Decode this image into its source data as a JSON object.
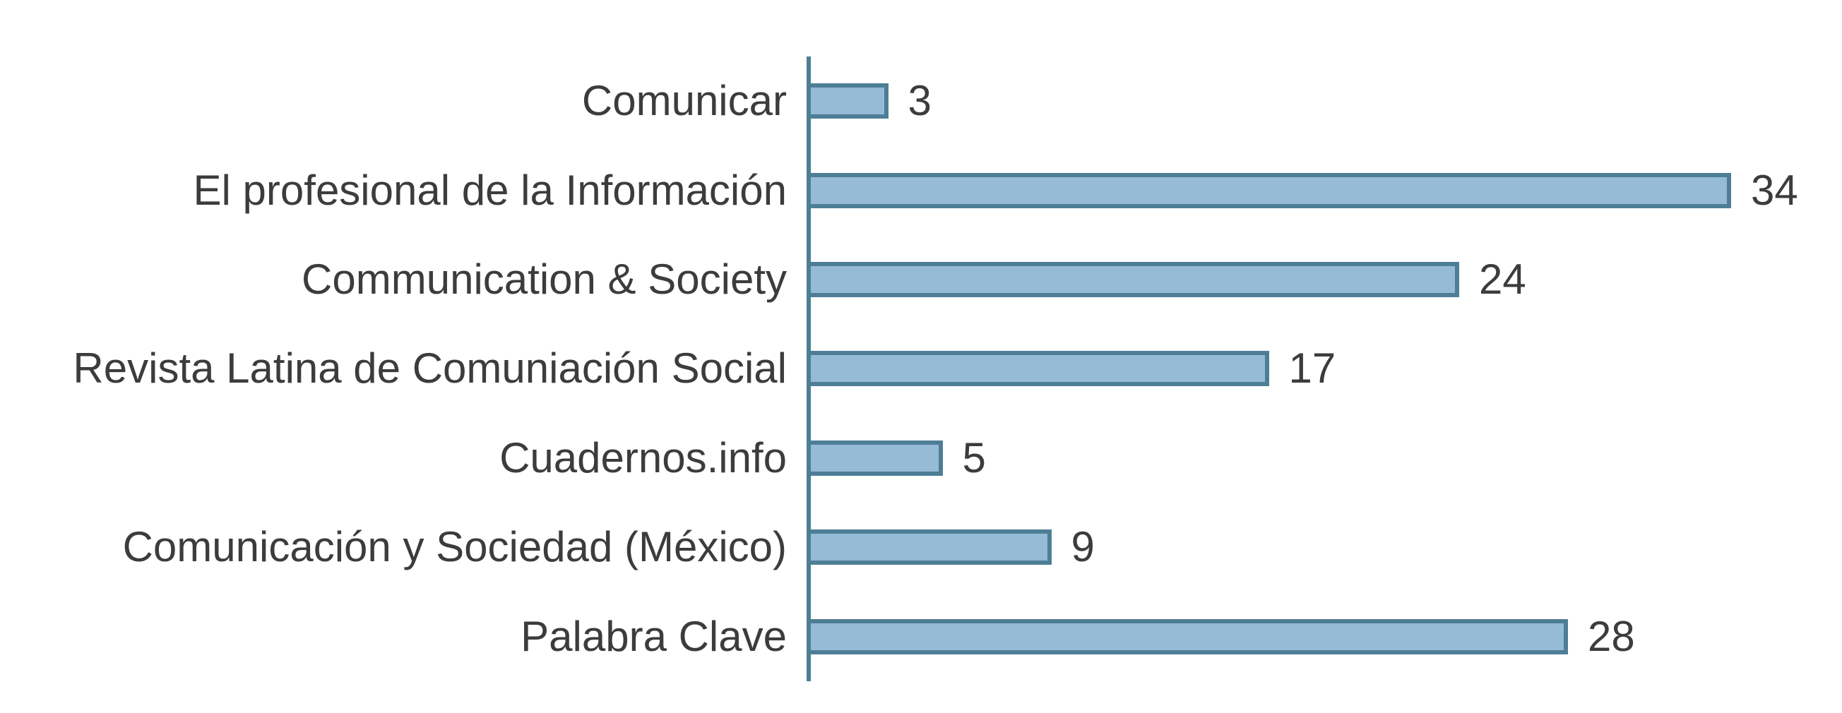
{
  "chart_data": {
    "type": "bar",
    "orientation": "horizontal",
    "title": "",
    "xlabel": "",
    "ylabel": "",
    "categories": [
      "Comunicar",
      "El profesional de la Información",
      "Communication & Society",
      "Revista Latina de Comuniación Social",
      "Cuadernos.info",
      "Comunicación y Sociedad (México)",
      "Palabra Clave"
    ],
    "values": [
      3,
      34,
      24,
      17,
      5,
      9,
      28
    ],
    "value_labels_shown": true,
    "xlim": [
      0,
      38
    ],
    "grid": false,
    "legend": "none",
    "colors": {
      "bar_fill": "#96bbd6",
      "bar_border": "#4d7e96",
      "axis_line": "#4d7e96",
      "text": "#3c3c3c",
      "background": "#ffffff"
    }
  }
}
